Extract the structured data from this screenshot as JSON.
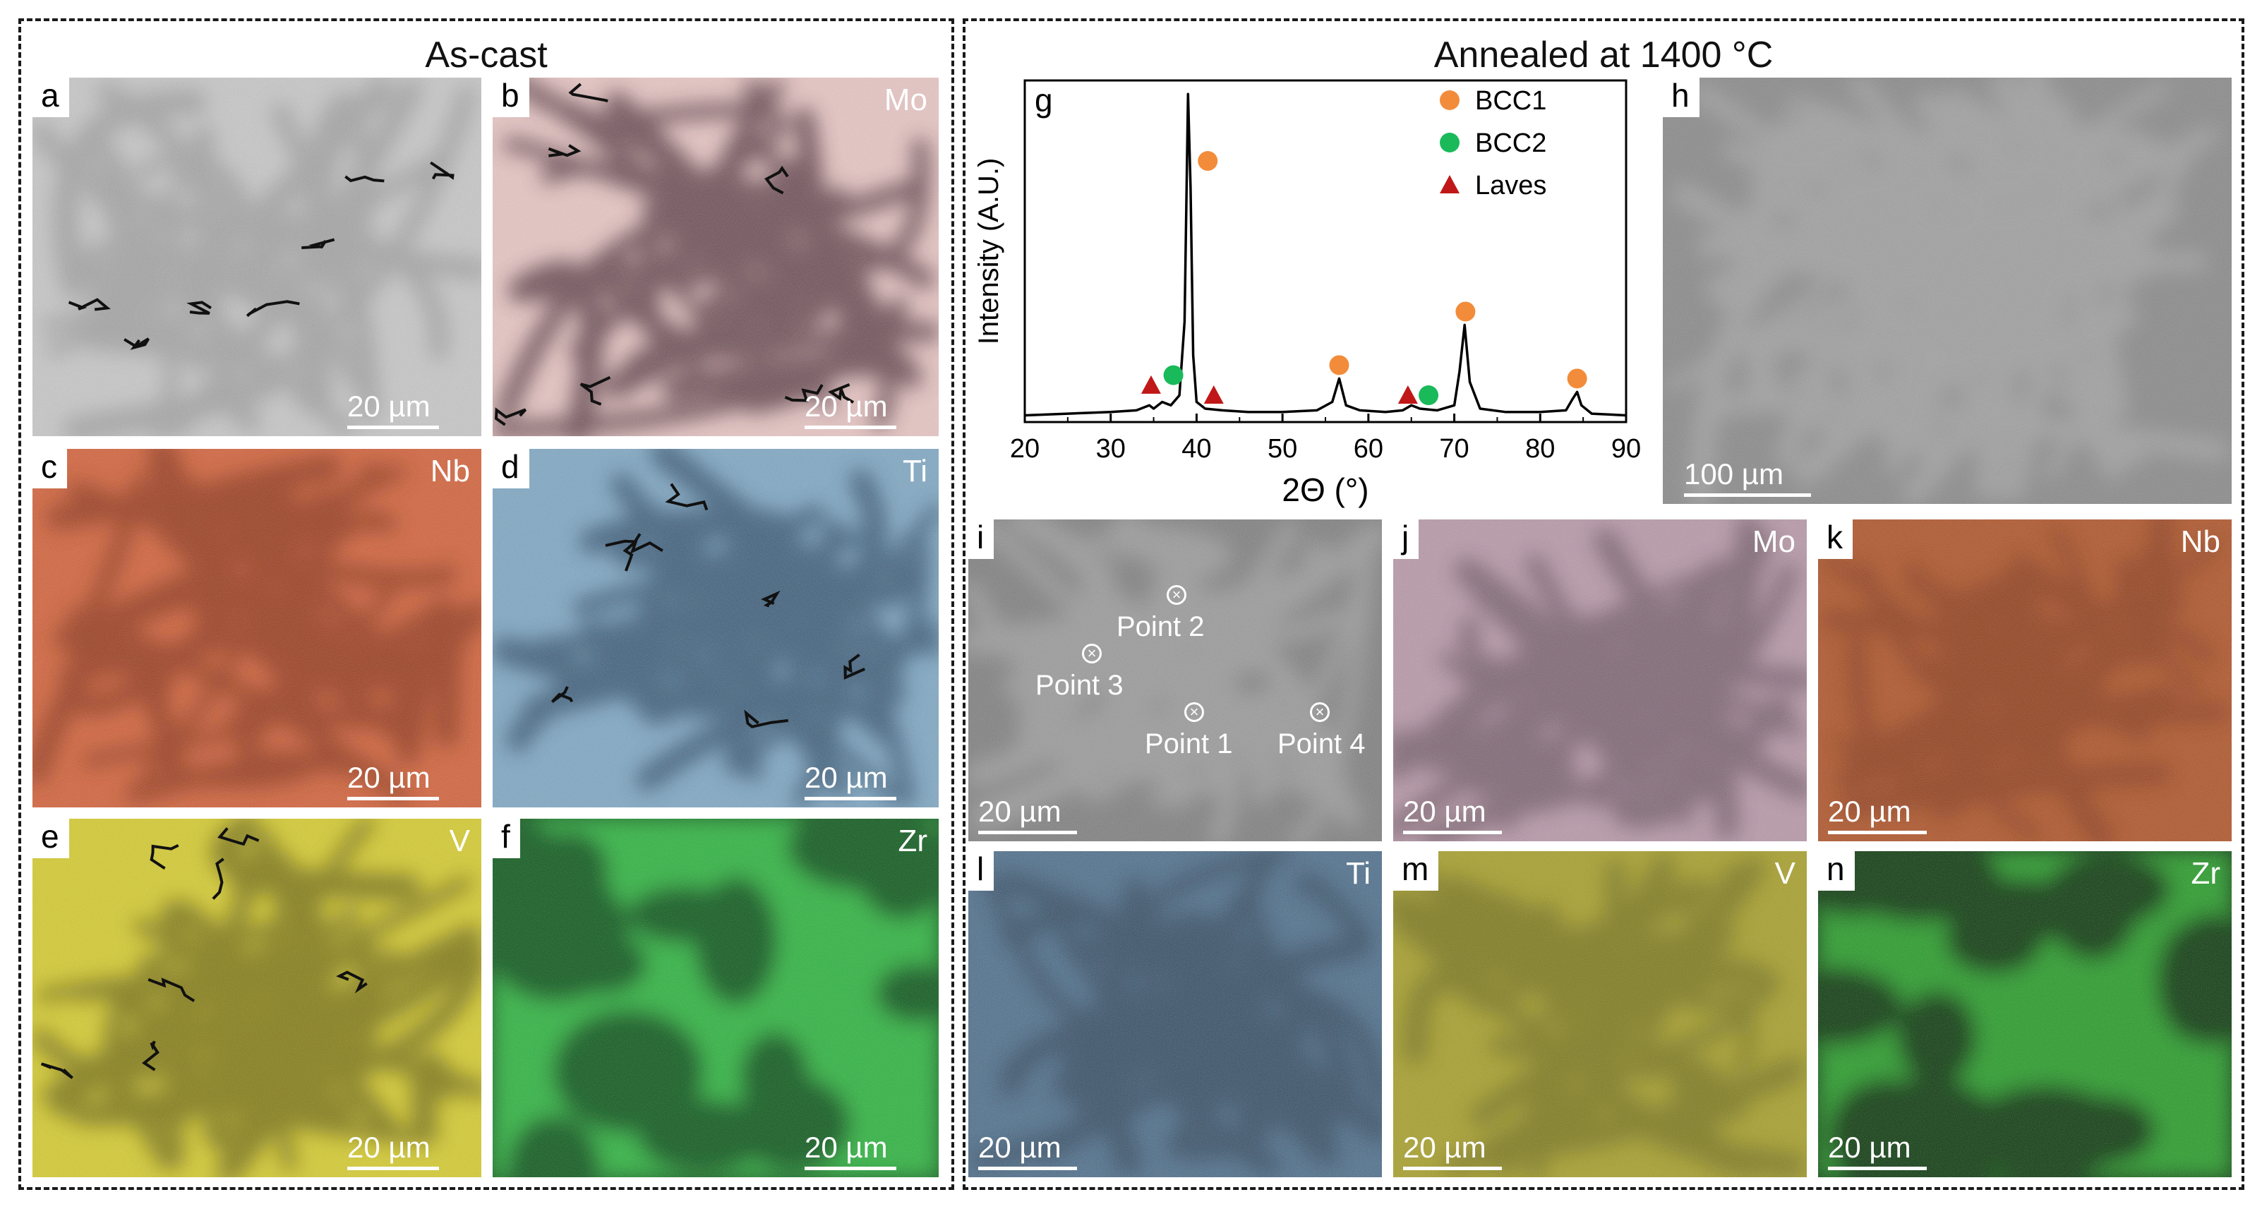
{
  "left_box": {
    "title": "As-cast"
  },
  "right_box": {
    "title": "Annealed at 1400 °C"
  },
  "panels": [
    {
      "id": "a",
      "letter": "a",
      "element": "",
      "scale": "20 µm",
      "color": "#c8c8c8",
      "tint": "#9a9a9a",
      "style": "sem"
    },
    {
      "id": "b",
      "letter": "b",
      "element": "Mo",
      "scale": "20 µm",
      "color": "#e8c6c4",
      "tint": "#4a2a35",
      "style": "map"
    },
    {
      "id": "c",
      "letter": "c",
      "element": "Nb",
      "scale": "20 µm",
      "color": "#d4623a",
      "tint": "#8a3018",
      "style": "map"
    },
    {
      "id": "d",
      "letter": "d",
      "element": "Ti",
      "scale": "20 µm",
      "color": "#7fa8c4",
      "tint": "#2a4a66",
      "style": "map"
    },
    {
      "id": "e",
      "letter": "e",
      "element": "V",
      "scale": "20 µm",
      "color": "#d6cc2e",
      "tint": "#6a6410",
      "style": "map"
    },
    {
      "id": "f",
      "letter": "f",
      "element": "Zr",
      "scale": "20 µm",
      "color": "#0f5a1c",
      "tint": "#3ae050",
      "style": "mapinv"
    },
    {
      "id": "h",
      "letter": "h",
      "element": "",
      "scale": "100 µm",
      "color": "#8a8a8a",
      "tint": "#a8a8a8",
      "style": "semh"
    },
    {
      "id": "i",
      "letter": "i",
      "element": "",
      "scale": "20 µm",
      "color": "#808080",
      "tint": "#a4a4a4",
      "style": "semi"
    },
    {
      "id": "j",
      "letter": "j",
      "element": "Mo",
      "scale": "20 µm",
      "color": "#b898a8",
      "tint": "#3a2a34",
      "style": "mapfine"
    },
    {
      "id": "k",
      "letter": "k",
      "element": "Nb",
      "scale": "20 µm",
      "color": "#b05428",
      "tint": "#702810",
      "style": "mapfine"
    },
    {
      "id": "l",
      "letter": "l",
      "element": "Ti",
      "scale": "20 µm",
      "color": "#4e6f8c",
      "tint": "#1a2a3a",
      "style": "mapfine"
    },
    {
      "id": "m",
      "letter": "m",
      "element": "V",
      "scale": "20 µm",
      "color": "#a8a02a",
      "tint": "#505010",
      "style": "mapfine"
    },
    {
      "id": "n",
      "letter": "n",
      "element": "Zr",
      "scale": "20 µm",
      "color": "#0a3a0e",
      "tint": "#33cc33",
      "style": "mapinvn"
    }
  ],
  "points": [
    {
      "label": "Point 2"
    },
    {
      "label": "Point 3"
    },
    {
      "label": "Point 1"
    },
    {
      "label": "Point 4"
    }
  ],
  "chart_data": {
    "type": "line",
    "letter": "g",
    "title": "",
    "xlabel": "2Θ (°)",
    "ylabel": "Intensity (A.U.)",
    "xlim": [
      20,
      90
    ],
    "xticks": [
      20,
      30,
      40,
      50,
      60,
      70,
      80,
      90
    ],
    "y_ticks_shown": false,
    "series": [
      {
        "name": "",
        "color": "#000000",
        "x": [
          20,
          25,
          30,
          33,
          34.5,
          35,
          36,
          37,
          38,
          38.6,
          39.0,
          39.3,
          39.6,
          40.0,
          41,
          43,
          46,
          50,
          54,
          55.8,
          56.6,
          57.4,
          59,
          62,
          64,
          65,
          66,
          68,
          70,
          70.6,
          71.2,
          71.8,
          73,
          76,
          80,
          83,
          83.8,
          84.3,
          84.8,
          86,
          90
        ],
        "y": [
          0.02,
          0.025,
          0.03,
          0.035,
          0.05,
          0.04,
          0.06,
          0.05,
          0.08,
          0.3,
          0.98,
          0.7,
          0.2,
          0.06,
          0.04,
          0.035,
          0.03,
          0.03,
          0.035,
          0.06,
          0.13,
          0.05,
          0.035,
          0.03,
          0.035,
          0.05,
          0.04,
          0.035,
          0.05,
          0.15,
          0.29,
          0.12,
          0.04,
          0.03,
          0.03,
          0.035,
          0.07,
          0.09,
          0.05,
          0.025,
          0.02
        ]
      }
    ],
    "legend": [
      {
        "name": "BCC1",
        "marker": "circle",
        "color": "#f28c3a"
      },
      {
        "name": "BCC2",
        "marker": "circle",
        "color": "#1aba5a"
      },
      {
        "name": "Laves",
        "marker": "triangle",
        "color": "#c01818"
      }
    ],
    "legend_position": "top-right",
    "markers": [
      {
        "phase": "BCC1",
        "x": 41.3,
        "y": 0.78
      },
      {
        "phase": "BCC1",
        "x": 56.6,
        "y": 0.17
      },
      {
        "phase": "BCC1",
        "x": 71.3,
        "y": 0.33
      },
      {
        "phase": "BCC1",
        "x": 84.3,
        "y": 0.13
      },
      {
        "phase": "BCC2",
        "x": 37.3,
        "y": 0.14
      },
      {
        "phase": "BCC2",
        "x": 67.0,
        "y": 0.08
      },
      {
        "phase": "Laves",
        "x": 34.7,
        "y": 0.11
      },
      {
        "phase": "Laves",
        "x": 42.0,
        "y": 0.08
      },
      {
        "phase": "Laves",
        "x": 64.6,
        "y": 0.08
      }
    ]
  }
}
